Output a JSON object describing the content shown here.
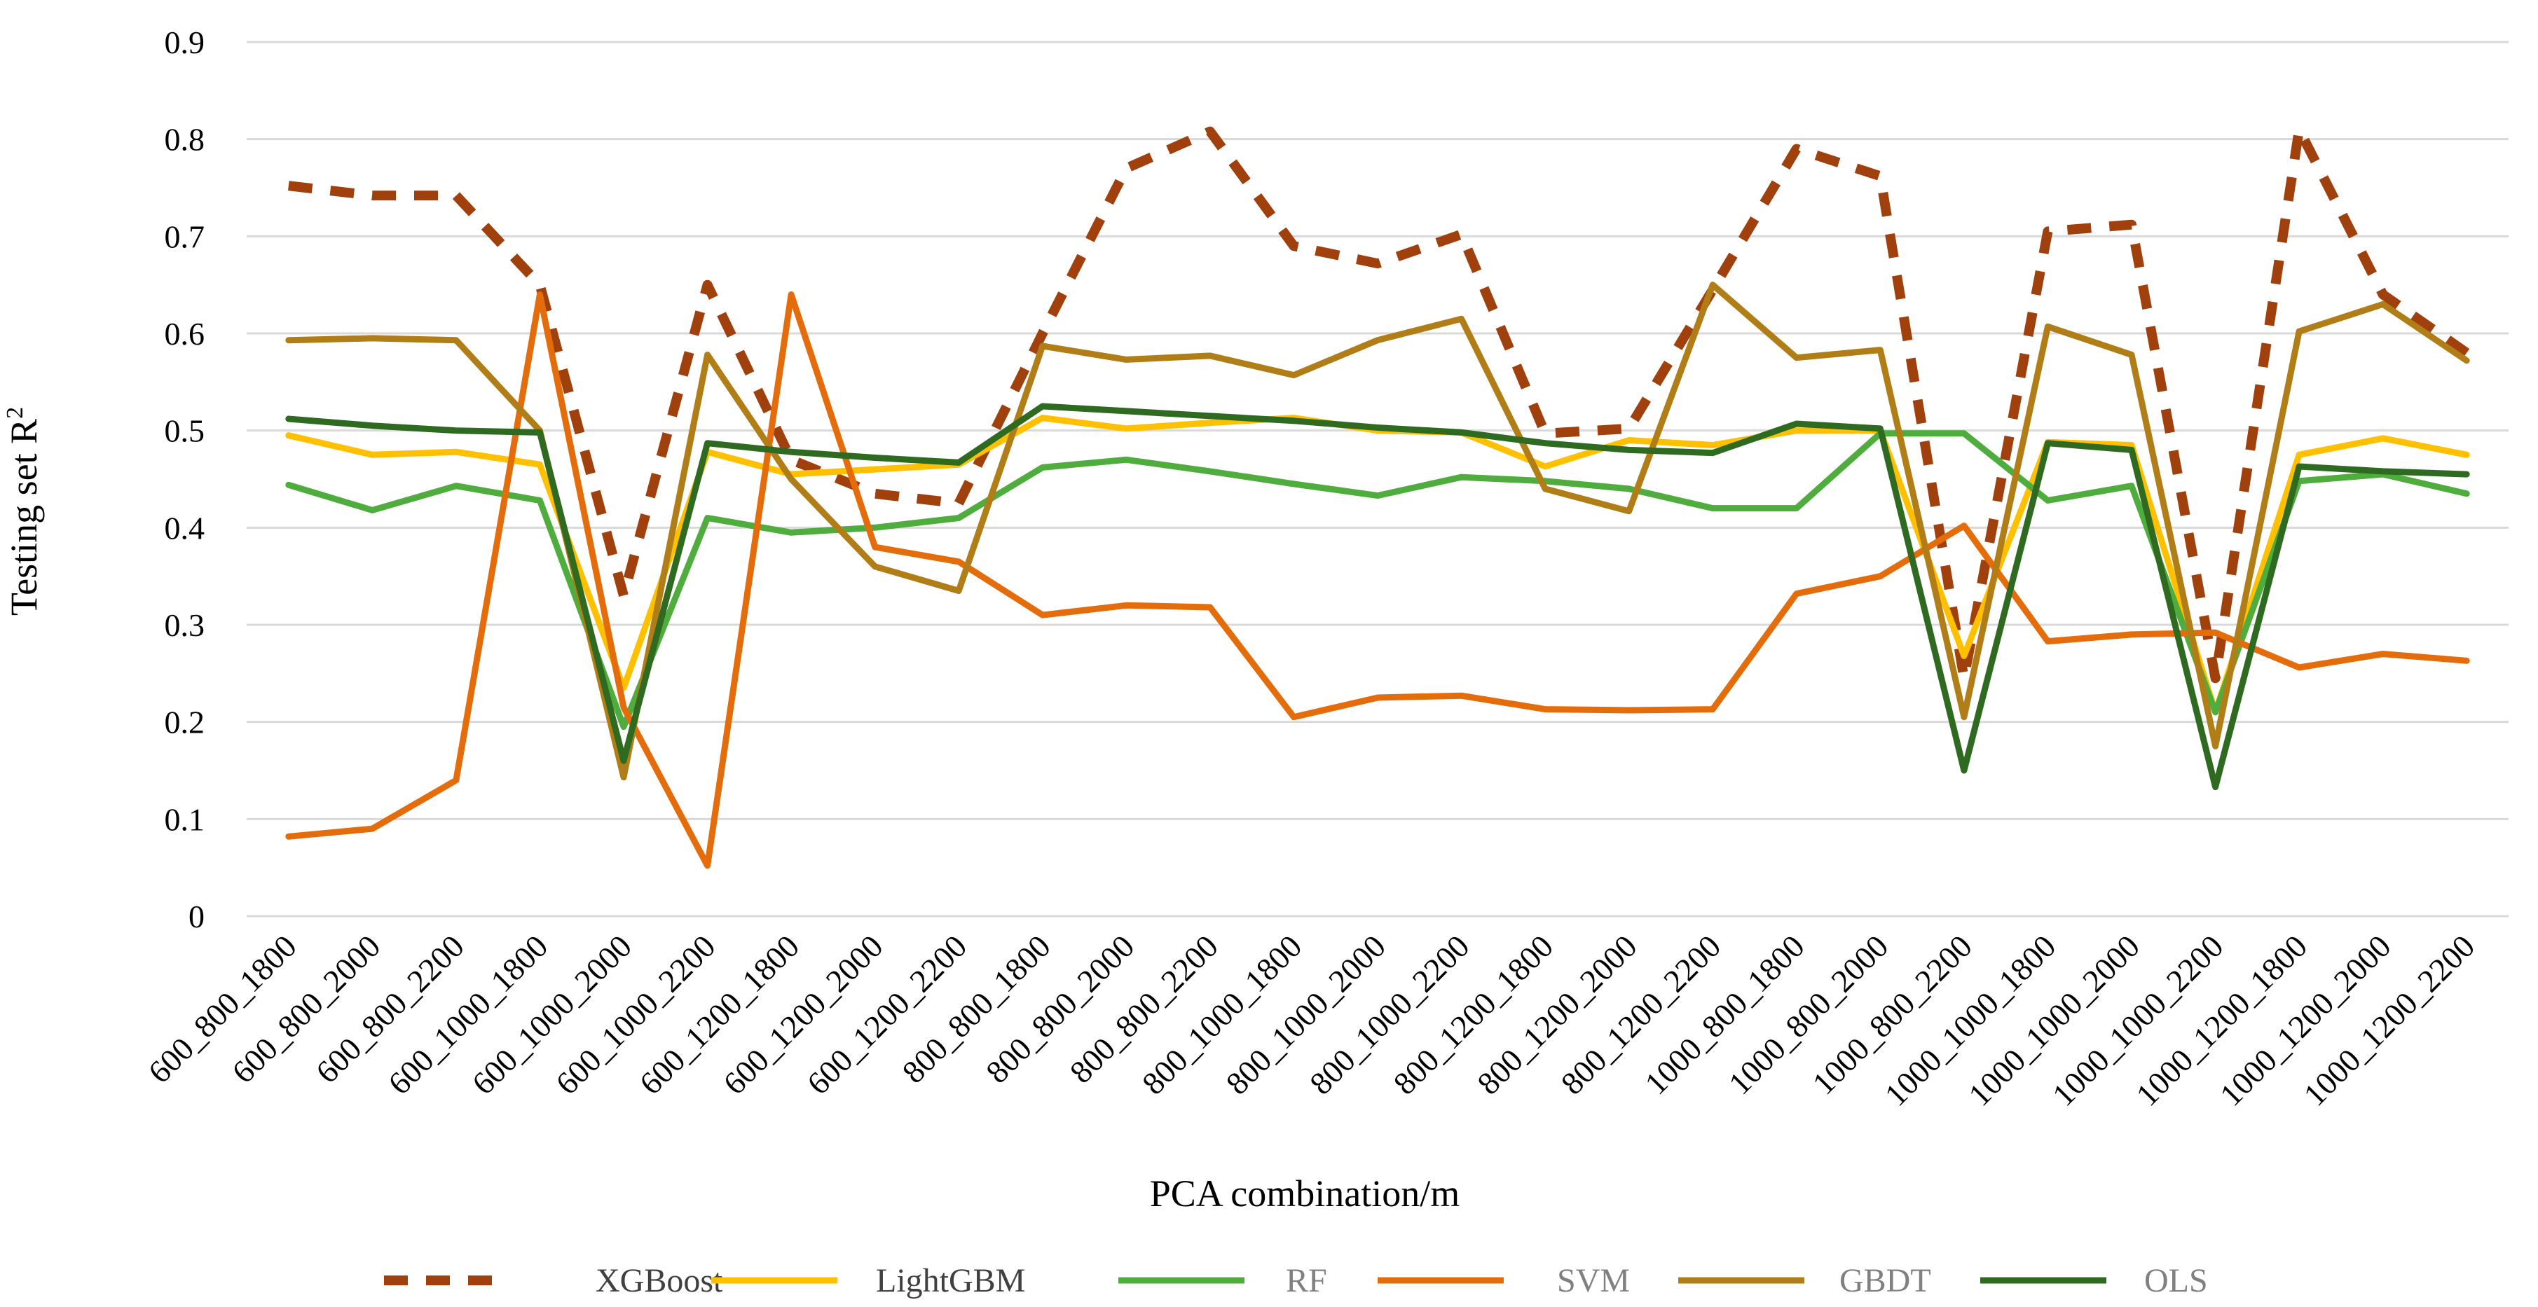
{
  "chart_data": {
    "type": "line",
    "title": "",
    "xlabel": "PCA combination/m",
    "ylabel_prefix": "Testing set R",
    "ylabel_superscript": "2",
    "ylim": [
      0,
      0.9
    ],
    "yticks": [
      "0",
      "0.1",
      "0.2",
      "0.3",
      "0.4",
      "0.5",
      "0.6",
      "0.7",
      "0.8",
      "0.9"
    ],
    "grid": true,
    "legend_position": "bottom",
    "categories": [
      "600_800_1800",
      "600_800_2000",
      "600_800_2200",
      "600_1000_1800",
      "600_1000_2000",
      "600_1000_2200",
      "600_1200_1800",
      "600_1200_2000",
      "600_1200_2200",
      "800_800_1800",
      "800_800_2000",
      "800_800_2200",
      "800_1000_1800",
      "800_1000_2000",
      "800_1000_2200",
      "800_1200_1800",
      "800_1200_2000",
      "800_1200_2200",
      "1000_800_1800",
      "1000_800_2000",
      "1000_800_2200",
      "1000_1000_1800",
      "1000_1000_2000",
      "1000_1000_2200",
      "1000_1200_1800",
      "1000_1200_2000",
      "1000_1200_2200"
    ],
    "series": [
      {
        "name": "XGBoost",
        "color": "#A0410D",
        "dashed": true,
        "legend_text_color": "#404040",
        "values": [
          0.752,
          0.742,
          0.742,
          0.65,
          0.33,
          0.65,
          0.47,
          0.435,
          0.425,
          0.6,
          0.77,
          0.808,
          0.69,
          0.672,
          0.702,
          0.497,
          0.502,
          0.645,
          0.79,
          0.762,
          0.245,
          0.705,
          0.712,
          0.245,
          0.81,
          0.64,
          0.58
        ]
      },
      {
        "name": "LightGBM",
        "color": "#FFC000",
        "dashed": false,
        "legend_text_color": "#404040",
        "values": [
          0.495,
          0.475,
          0.478,
          0.465,
          0.235,
          0.478,
          0.455,
          0.46,
          0.465,
          0.513,
          0.502,
          0.508,
          0.513,
          0.5,
          0.498,
          0.463,
          0.49,
          0.485,
          0.5,
          0.5,
          0.268,
          0.488,
          0.485,
          0.21,
          0.475,
          0.492,
          0.475
        ]
      },
      {
        "name": "RF",
        "color": "#4FAD3D",
        "dashed": false,
        "legend_text_color": "#808080",
        "values": [
          0.444,
          0.418,
          0.443,
          0.428,
          0.195,
          0.41,
          0.395,
          0.4,
          0.41,
          0.462,
          0.47,
          0.458,
          0.445,
          0.433,
          0.452,
          0.448,
          0.44,
          0.42,
          0.42,
          0.497,
          0.497,
          0.428,
          0.443,
          0.21,
          0.448,
          0.455,
          0.435
        ]
      },
      {
        "name": "SVM",
        "color": "#E46C0A",
        "dashed": false,
        "legend_text_color": "#808080",
        "values": [
          0.082,
          0.09,
          0.14,
          0.64,
          0.215,
          0.052,
          0.64,
          0.38,
          0.365,
          0.31,
          0.32,
          0.318,
          0.205,
          0.225,
          0.227,
          0.213,
          0.212,
          0.213,
          0.332,
          0.35,
          0.402,
          0.283,
          0.29,
          0.292,
          0.256,
          0.27,
          0.263
        ]
      },
      {
        "name": "GBDT",
        "color": "#B07D17",
        "dashed": false,
        "legend_text_color": "#808080",
        "values": [
          0.593,
          0.595,
          0.593,
          0.5,
          0.143,
          0.578,
          0.45,
          0.36,
          0.335,
          0.587,
          0.573,
          0.577,
          0.557,
          0.593,
          0.615,
          0.44,
          0.417,
          0.65,
          0.575,
          0.583,
          0.205,
          0.607,
          0.578,
          0.175,
          0.602,
          0.63,
          0.572
        ]
      },
      {
        "name": "OLS",
        "color": "#2E6B21",
        "dashed": false,
        "legend_text_color": "#808080",
        "values": [
          0.512,
          0.505,
          0.5,
          0.498,
          0.16,
          0.487,
          0.478,
          0.472,
          0.467,
          0.525,
          0.52,
          0.515,
          0.51,
          0.503,
          0.498,
          0.487,
          0.48,
          0.477,
          0.507,
          0.502,
          0.15,
          0.487,
          0.48,
          0.133,
          0.463,
          0.458,
          0.455
        ]
      }
    ]
  }
}
